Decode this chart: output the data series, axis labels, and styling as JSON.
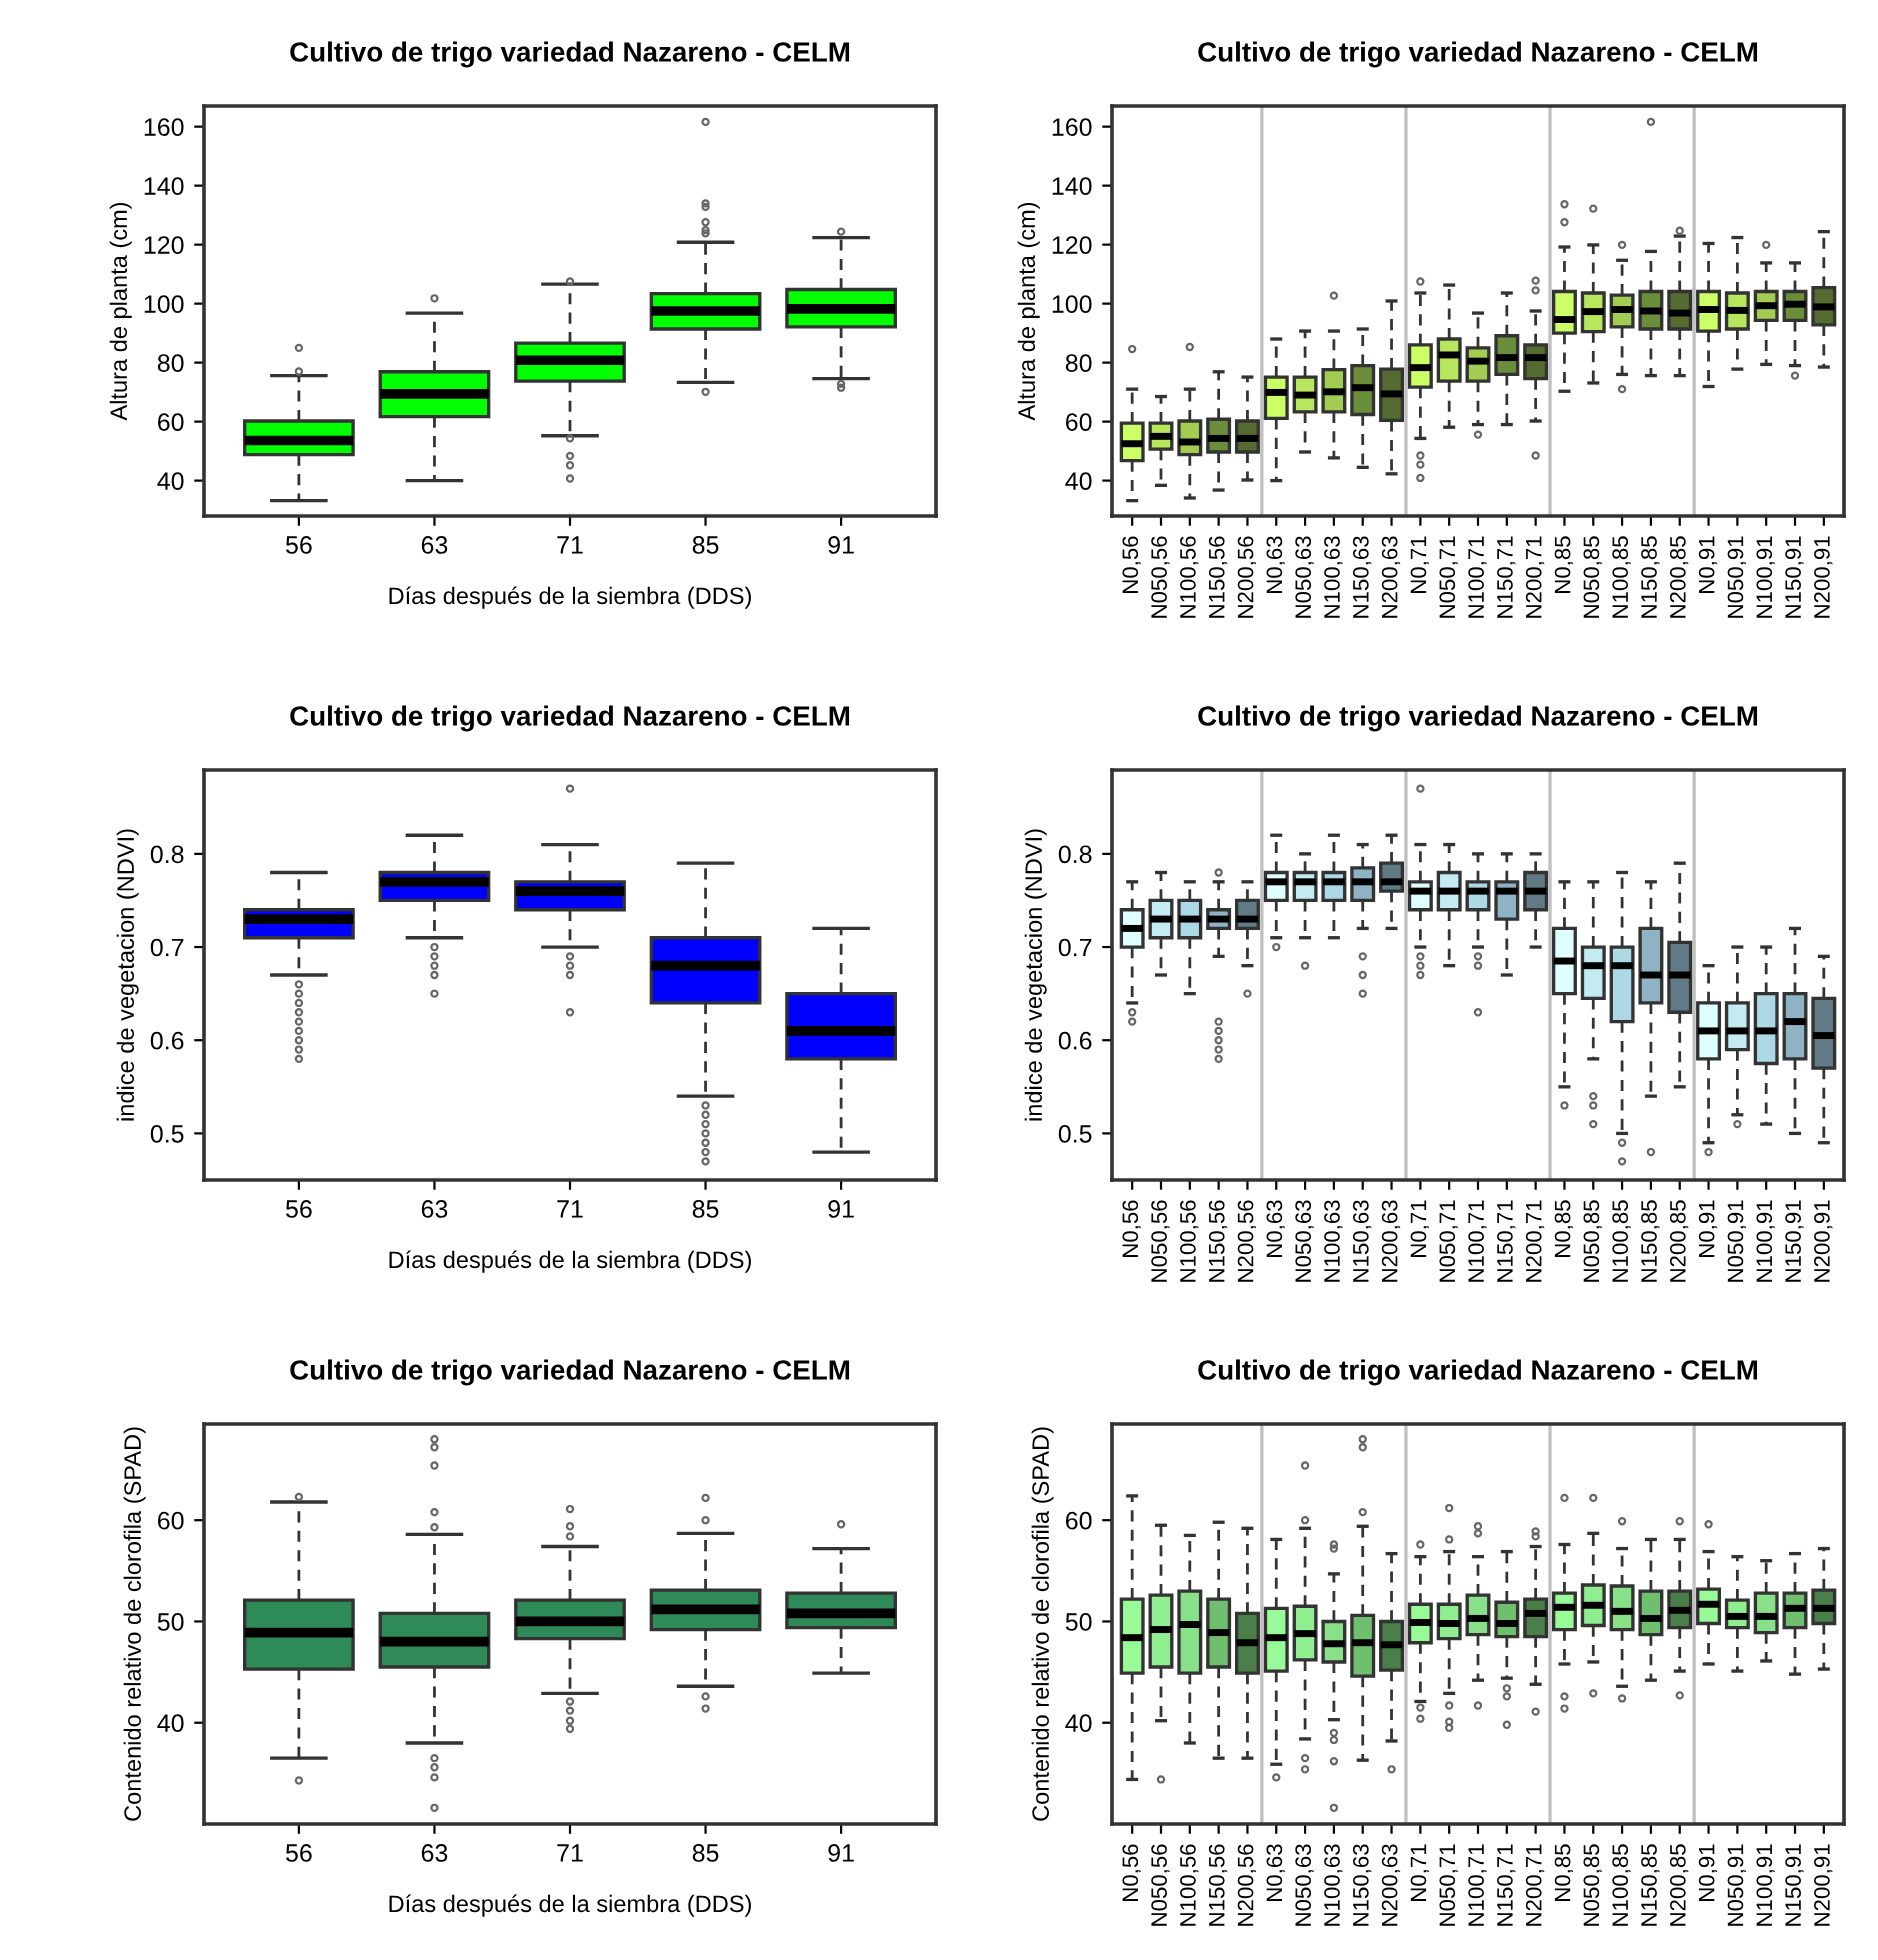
{
  "chart_data": [
    {
      "type": "box",
      "title": "Cultivo de trigo variedad Nazareno - CELM",
      "xlabel": "Días después de la siembra (DDS)",
      "ylabel": "Altura de planta (cm)",
      "categories": [
        "56",
        "63",
        "71",
        "85",
        "91"
      ],
      "colors": [
        "#00ff00",
        "#00ff00",
        "#00ff00",
        "#00ff00",
        "#00ff00"
      ],
      "ylim": [
        28,
        167
      ],
      "yticks": [
        40,
        60,
        80,
        100,
        120,
        140,
        160
      ],
      "grid": false,
      "boxes": [
        {
          "low": 33.2,
          "q1": 48.8,
          "median": 53.6,
          "q3": 60.2,
          "high": 75.6,
          "outliers": [
            77,
            85
          ]
        },
        {
          "low": 40,
          "q1": 61.7,
          "median": 69.4,
          "q3": 76.9,
          "high": 96.8,
          "outliers": [
            101.8
          ]
        },
        {
          "low": 55.2,
          "q1": 73.7,
          "median": 80.8,
          "q3": 86.6,
          "high": 106.6,
          "outliers": [
            107.5,
            54.3,
            48.4,
            45.2,
            40.7
          ]
        },
        {
          "low": 73.3,
          "q1": 91.4,
          "median": 97.5,
          "q3": 103.4,
          "high": 120.8,
          "outliers": [
            70.1,
            123.8,
            124.9,
            127.6,
            132.8,
            134,
            161.6
          ]
        },
        {
          "low": 74.6,
          "q1": 92.1,
          "median": 98.2,
          "q3": 104.8,
          "high": 122.4,
          "outliers": [
            124.4,
            72.8,
            71.5
          ]
        }
      ]
    },
    {
      "type": "box",
      "title": "Cultivo de trigo variedad Nazareno - CELM",
      "ylabel": "Altura de planta (cm)",
      "categories": [
        "N0,56",
        "N050,56",
        "N100,56",
        "N150,56",
        "N200,56",
        "N0,63",
        "N050,63",
        "N100,63",
        "N150,63",
        "N200,63",
        "N0,71",
        "N050,71",
        "N100,71",
        "N150,71",
        "N200,71",
        "N0,85",
        "N050,85",
        "N100,85",
        "N150,85",
        "N200,85",
        "N0,91",
        "N050,91",
        "N100,91",
        "N150,91",
        "N200,91"
      ],
      "colors": [
        "#ccff66",
        "#b8e65c",
        "#a3cc52",
        "#6b8e3a",
        "#556b2f",
        "#ccff66",
        "#b8e65c",
        "#a3cc52",
        "#6b8e3a",
        "#556b2f",
        "#ccff66",
        "#b8e65c",
        "#a3cc52",
        "#6b8e3a",
        "#556b2f",
        "#ccff66",
        "#b8e65c",
        "#a3cc52",
        "#6b8e3a",
        "#556b2f",
        "#ccff66",
        "#b8e65c",
        "#a3cc52",
        "#6b8e3a",
        "#556b2f"
      ],
      "ylim": [
        28,
        167
      ],
      "yticks": [
        40,
        60,
        80,
        100,
        120,
        140,
        160
      ],
      "grid": false,
      "boxes": [
        {
          "low": 33.2,
          "q1": 46.8,
          "median": 52.5,
          "q3": 59.5,
          "high": 71,
          "outliers": [
            84.6
          ]
        },
        {
          "low": 38.4,
          "q1": 50.7,
          "median": 55,
          "q3": 59.5,
          "high": 68.5
        },
        {
          "low": 34.1,
          "q1": 48.8,
          "median": 53.1,
          "q3": 60.2,
          "high": 71,
          "outliers": [
            85.3
          ]
        },
        {
          "low": 36.8,
          "q1": 49.7,
          "median": 54.3,
          "q3": 60.8,
          "high": 76.9
        },
        {
          "low": 40.2,
          "q1": 49.7,
          "median": 54.3,
          "q3": 60.2,
          "high": 75.1
        },
        {
          "low": 40,
          "q1": 61.1,
          "median": 69.9,
          "q3": 75.1,
          "high": 88
        },
        {
          "low": 49.7,
          "q1": 63.3,
          "median": 69,
          "q3": 75.1,
          "high": 90.7
        },
        {
          "low": 47.7,
          "q1": 63.3,
          "median": 70.1,
          "q3": 77.6,
          "high": 90.7,
          "outliers": [
            102.7
          ]
        },
        {
          "low": 44.5,
          "q1": 62.4,
          "median": 71.5,
          "q3": 79,
          "high": 91.4
        },
        {
          "low": 42.3,
          "q1": 60.4,
          "median": 69.4,
          "q3": 77.8,
          "high": 100.9
        },
        {
          "low": 54.3,
          "q1": 71.7,
          "median": 78.3,
          "q3": 86,
          "high": 103.6,
          "outliers": [
            48.5,
            45.4,
            40.9,
            107.5
          ]
        },
        {
          "low": 58.1,
          "q1": 73.7,
          "median": 82.6,
          "q3": 88,
          "high": 106.3
        },
        {
          "low": 59,
          "q1": 73.7,
          "median": 80.5,
          "q3": 85,
          "high": 96.8,
          "outliers": [
            55.6
          ]
        },
        {
          "low": 59,
          "q1": 76,
          "median": 81.7,
          "q3": 89.1,
          "high": 103.6
        },
        {
          "low": 60.2,
          "q1": 74.6,
          "median": 81.7,
          "q3": 86,
          "high": 97.5,
          "outliers": [
            48.5,
            104.5,
            107.8
          ]
        },
        {
          "low": 70.3,
          "q1": 90,
          "median": 94.6,
          "q3": 104.1,
          "high": 119.2,
          "outliers": [
            127.6,
            133.7
          ]
        },
        {
          "low": 73.1,
          "q1": 90.5,
          "median": 97.3,
          "q3": 103.6,
          "high": 119.9,
          "outliers": [
            132.2
          ]
        },
        {
          "low": 76,
          "q1": 92.1,
          "median": 98,
          "q3": 102.9,
          "high": 114.7,
          "outliers": [
            71,
            119.9
          ]
        },
        {
          "low": 75.6,
          "q1": 91.4,
          "median": 97.5,
          "q3": 104.1,
          "high": 117.7,
          "outliers": [
            161.6
          ]
        },
        {
          "low": 75.6,
          "q1": 91.4,
          "median": 96.8,
          "q3": 104.1,
          "high": 122.9,
          "outliers": [
            124.7
          ]
        },
        {
          "low": 71.9,
          "q1": 90.7,
          "median": 98,
          "q3": 104.1,
          "high": 120.4
        },
        {
          "low": 77.8,
          "q1": 91.4,
          "median": 97.7,
          "q3": 103.6,
          "high": 122.4
        },
        {
          "low": 79.4,
          "q1": 94.3,
          "median": 99.3,
          "q3": 104.1,
          "high": 113.8,
          "outliers": [
            119.9
          ]
        },
        {
          "low": 79,
          "q1": 94.3,
          "median": 99.8,
          "q3": 104.1,
          "high": 113.8,
          "outliers": [
            75.6
          ]
        },
        {
          "low": 78.5,
          "q1": 92.8,
          "median": 98.9,
          "q3": 105.4,
          "high": 124.4
        }
      ]
    },
    {
      "type": "box",
      "title": "Cultivo de trigo variedad Nazareno - CELM",
      "xlabel": "Días después de la siembra (DDS)",
      "ylabel": "indice de vegetacion (NDVI)",
      "categories": [
        "56",
        "63",
        "71",
        "85",
        "91"
      ],
      "colors": [
        "#0000ff",
        "#0000ff",
        "#0000ff",
        "#0000ff",
        "#0000ff"
      ],
      "ylim": [
        0.45,
        0.89
      ],
      "yticks": [
        0.5,
        0.6,
        0.7,
        0.8
      ],
      "grid": false,
      "boxes": [
        {
          "low": 0.67,
          "q1": 0.71,
          "median": 0.73,
          "q3": 0.74,
          "high": 0.78,
          "outliers": [
            0.58,
            0.59,
            0.6,
            0.61,
            0.62,
            0.63,
            0.64,
            0.65,
            0.66
          ]
        },
        {
          "low": 0.71,
          "q1": 0.75,
          "median": 0.77,
          "q3": 0.78,
          "high": 0.82,
          "outliers": [
            0.65,
            0.67,
            0.68,
            0.69,
            0.7
          ]
        },
        {
          "low": 0.7,
          "q1": 0.74,
          "median": 0.76,
          "q3": 0.77,
          "high": 0.81,
          "outliers": [
            0.63,
            0.67,
            0.68,
            0.69,
            0.87
          ]
        },
        {
          "low": 0.54,
          "q1": 0.64,
          "median": 0.68,
          "q3": 0.71,
          "high": 0.79,
          "outliers": [
            0.47,
            0.48,
            0.49,
            0.5,
            0.51,
            0.52,
            0.53
          ]
        },
        {
          "low": 0.48,
          "q1": 0.58,
          "median": 0.61,
          "q3": 0.65,
          "high": 0.72
        }
      ]
    },
    {
      "type": "box",
      "title": "Cultivo de trigo variedad Nazareno - CELM",
      "ylabel": "indice de vegetacion (NDVI)",
      "categories": [
        "N0,56",
        "N050,56",
        "N100,56",
        "N150,56",
        "N200,56",
        "N0,63",
        "N050,63",
        "N100,63",
        "N150,63",
        "N200,63",
        "N0,71",
        "N050,71",
        "N100,71",
        "N150,71",
        "N200,71",
        "N0,85",
        "N050,85",
        "N100,85",
        "N150,85",
        "N200,85",
        "N0,91",
        "N050,91",
        "N100,91",
        "N150,91",
        "N200,91"
      ],
      "colors": [
        "#e0ffff",
        "#c4eaf2",
        "#add8e6",
        "#8fb3c2",
        "#607b85",
        "#e0ffff",
        "#c4eaf2",
        "#add8e6",
        "#8fb3c2",
        "#607b85",
        "#e0ffff",
        "#c4eaf2",
        "#add8e6",
        "#8fb3c2",
        "#607b85",
        "#e0ffff",
        "#c4eaf2",
        "#add8e6",
        "#8fb3c2",
        "#607b85",
        "#e0ffff",
        "#c4eaf2",
        "#add8e6",
        "#8fb3c2",
        "#607b85"
      ],
      "ylim": [
        0.45,
        0.89
      ],
      "yticks": [
        0.5,
        0.6,
        0.7,
        0.8
      ],
      "grid": false,
      "boxes": [
        {
          "low": 0.64,
          "q1": 0.7,
          "median": 0.72,
          "q3": 0.74,
          "high": 0.77,
          "outliers": [
            0.62,
            0.63
          ]
        },
        {
          "low": 0.67,
          "q1": 0.71,
          "median": 0.73,
          "q3": 0.75,
          "high": 0.78
        },
        {
          "low": 0.65,
          "q1": 0.71,
          "median": 0.73,
          "q3": 0.75,
          "high": 0.77
        },
        {
          "low": 0.69,
          "q1": 0.72,
          "median": 0.73,
          "q3": 0.74,
          "high": 0.77,
          "outliers": [
            0.58,
            0.59,
            0.6,
            0.61,
            0.62,
            0.78
          ]
        },
        {
          "low": 0.68,
          "q1": 0.72,
          "median": 0.73,
          "q3": 0.75,
          "high": 0.77,
          "outliers": [
            0.65
          ]
        },
        {
          "low": 0.71,
          "q1": 0.75,
          "median": 0.77,
          "q3": 0.78,
          "high": 0.82,
          "outliers": [
            0.7
          ]
        },
        {
          "low": 0.71,
          "q1": 0.75,
          "median": 0.77,
          "q3": 0.78,
          "high": 0.8,
          "outliers": [
            0.68
          ]
        },
        {
          "low": 0.71,
          "q1": 0.75,
          "median": 0.77,
          "q3": 0.78,
          "high": 0.82
        },
        {
          "low": 0.72,
          "q1": 0.75,
          "median": 0.77,
          "q3": 0.785,
          "high": 0.81,
          "outliers": [
            0.65,
            0.67,
            0.69
          ]
        },
        {
          "low": 0.72,
          "q1": 0.76,
          "median": 0.77,
          "q3": 0.79,
          "high": 0.82
        },
        {
          "low": 0.7,
          "q1": 0.74,
          "median": 0.76,
          "q3": 0.77,
          "high": 0.81,
          "outliers": [
            0.67,
            0.68,
            0.69,
            0.87
          ]
        },
        {
          "low": 0.68,
          "q1": 0.74,
          "median": 0.76,
          "q3": 0.78,
          "high": 0.81
        },
        {
          "low": 0.7,
          "q1": 0.74,
          "median": 0.76,
          "q3": 0.77,
          "high": 0.8,
          "outliers": [
            0.63,
            0.68,
            0.69
          ]
        },
        {
          "low": 0.67,
          "q1": 0.73,
          "median": 0.76,
          "q3": 0.77,
          "high": 0.8
        },
        {
          "low": 0.7,
          "q1": 0.74,
          "median": 0.76,
          "q3": 0.78,
          "high": 0.8
        },
        {
          "low": 0.55,
          "q1": 0.65,
          "median": 0.685,
          "q3": 0.72,
          "high": 0.77,
          "outliers": [
            0.53
          ]
        },
        {
          "low": 0.58,
          "q1": 0.645,
          "median": 0.68,
          "q3": 0.7,
          "high": 0.77,
          "outliers": [
            0.51,
            0.53,
            0.54
          ]
        },
        {
          "low": 0.5,
          "q1": 0.62,
          "median": 0.68,
          "q3": 0.7,
          "high": 0.78,
          "outliers": [
            0.47,
            0.49
          ]
        },
        {
          "low": 0.54,
          "q1": 0.64,
          "median": 0.67,
          "q3": 0.72,
          "high": 0.77,
          "outliers": [
            0.48
          ]
        },
        {
          "low": 0.55,
          "q1": 0.63,
          "median": 0.67,
          "q3": 0.705,
          "high": 0.79
        },
        {
          "low": 0.49,
          "q1": 0.58,
          "median": 0.61,
          "q3": 0.64,
          "high": 0.68,
          "outliers": [
            0.48
          ]
        },
        {
          "low": 0.52,
          "q1": 0.59,
          "median": 0.61,
          "q3": 0.64,
          "high": 0.7,
          "outliers": [
            0.51
          ]
        },
        {
          "low": 0.51,
          "q1": 0.575,
          "median": 0.61,
          "q3": 0.65,
          "high": 0.7
        },
        {
          "low": 0.5,
          "q1": 0.58,
          "median": 0.62,
          "q3": 0.65,
          "high": 0.72
        },
        {
          "low": 0.49,
          "q1": 0.57,
          "median": 0.605,
          "q3": 0.645,
          "high": 0.69
        }
      ]
    },
    {
      "type": "box",
      "title": "Cultivo de trigo variedad Nazareno - CELM",
      "xlabel": "Días después de la siembra (DDS)",
      "ylabel": "Contenido relativo de clorofila (SPAD)",
      "categories": [
        "56",
        "63",
        "71",
        "85",
        "91"
      ],
      "colors": [
        "#2e8b57",
        "#2e8b57",
        "#2e8b57",
        "#2e8b57",
        "#2e8b57"
      ],
      "ylim": [
        30,
        69.5
      ],
      "yticks": [
        40,
        50,
        60
      ],
      "grid": false,
      "boxes": [
        {
          "low": 36.5,
          "q1": 45.3,
          "median": 48.9,
          "q3": 52.1,
          "high": 61.8,
          "outliers": [
            62.3,
            34.3
          ]
        },
        {
          "low": 38,
          "q1": 45.5,
          "median": 48,
          "q3": 50.8,
          "high": 58.6,
          "outliers": [
            59.3,
            60.8,
            65.4,
            67.2,
            68,
            36.5,
            35.6,
            34.6,
            31.6
          ]
        },
        {
          "low": 42.9,
          "q1": 48.3,
          "median": 50,
          "q3": 52.1,
          "high": 57.4,
          "outliers": [
            61.1,
            59.4,
            58.4,
            42.1,
            41.2,
            40.2,
            39.4
          ]
        },
        {
          "low": 43.6,
          "q1": 49.2,
          "median": 51.2,
          "q3": 53.1,
          "high": 58.7,
          "outliers": [
            60,
            62.2,
            42.6,
            41.4
          ]
        },
        {
          "low": 44.9,
          "q1": 49.4,
          "median": 50.8,
          "q3": 52.8,
          "high": 57.2,
          "outliers": [
            59.6
          ]
        }
      ]
    },
    {
      "type": "box",
      "title": "Cultivo de trigo variedad Nazareno - CELM",
      "ylabel": "Contenido relativo de clorofila (SPAD)",
      "categories": [
        "N0,56",
        "N050,56",
        "N100,56",
        "N150,56",
        "N200,56",
        "N0,63",
        "N050,63",
        "N100,63",
        "N150,63",
        "N200,63",
        "N0,71",
        "N050,71",
        "N100,71",
        "N150,71",
        "N200,71",
        "N0,85",
        "N050,85",
        "N100,85",
        "N150,85",
        "N200,85",
        "N0,91",
        "N050,91",
        "N100,91",
        "N150,91",
        "N200,91"
      ],
      "colors": [
        "#98fb98",
        "#90ee90",
        "#88e088",
        "#6fbf6f",
        "#4a7f4a",
        "#98fb98",
        "#90ee90",
        "#88e088",
        "#6fbf6f",
        "#4a7f4a",
        "#98fb98",
        "#90ee90",
        "#88e088",
        "#6fbf6f",
        "#4a7f4a",
        "#98fb98",
        "#90ee90",
        "#88e088",
        "#6fbf6f",
        "#4a7f4a",
        "#98fb98",
        "#90ee90",
        "#88e088",
        "#6fbf6f",
        "#4a7f4a"
      ],
      "ylim": [
        30,
        69.5
      ],
      "yticks": [
        40,
        50,
        60
      ],
      "grid": false,
      "boxes": [
        {
          "low": 34.4,
          "q1": 44.9,
          "median": 48.4,
          "q3": 52.2,
          "high": 62.4
        },
        {
          "low": 40.2,
          "q1": 45.5,
          "median": 49.2,
          "q3": 52.6,
          "high": 59.5,
          "outliers": [
            34.4
          ]
        },
        {
          "low": 38,
          "q1": 44.9,
          "median": 49.7,
          "q3": 53,
          "high": 58.5
        },
        {
          "low": 36.5,
          "q1": 45.5,
          "median": 48.9,
          "q3": 52.2,
          "high": 59.8
        },
        {
          "low": 36.5,
          "q1": 44.9,
          "median": 47.9,
          "q3": 50.8,
          "high": 59.2
        },
        {
          "low": 35.9,
          "q1": 45.1,
          "median": 48.4,
          "q3": 51.3,
          "high": 58.1,
          "outliers": [
            34.6
          ]
        },
        {
          "low": 38.4,
          "q1": 46.2,
          "median": 48.8,
          "q3": 51.5,
          "high": 59.2,
          "outliers": [
            36.5,
            35.4,
            60,
            65.4
          ]
        },
        {
          "low": 40.3,
          "q1": 46,
          "median": 47.8,
          "q3": 50,
          "high": 54.7,
          "outliers": [
            57.2,
            57.6,
            39,
            38.3,
            36.2,
            31.6
          ]
        },
        {
          "low": 36.3,
          "q1": 44.6,
          "median": 47.9,
          "q3": 50.6,
          "high": 59.4,
          "outliers": [
            60.8,
            67.2,
            68
          ]
        },
        {
          "low": 38.2,
          "q1": 45.2,
          "median": 47.7,
          "q3": 50,
          "high": 56.7,
          "outliers": [
            35.4
          ]
        },
        {
          "low": 42.1,
          "q1": 47.9,
          "median": 49.9,
          "q3": 51.7,
          "high": 56.4,
          "outliers": [
            57.6,
            41.5,
            40.4
          ]
        },
        {
          "low": 42.9,
          "q1": 48.3,
          "median": 49.8,
          "q3": 51.7,
          "high": 56.9,
          "outliers": [
            58.1,
            61.2,
            41.7,
            40.1,
            39.5
          ]
        },
        {
          "low": 44.2,
          "q1": 48.7,
          "median": 50.3,
          "q3": 52.6,
          "high": 56.4,
          "outliers": [
            59.4,
            58.7,
            41.7
          ]
        },
        {
          "low": 44.4,
          "q1": 48.5,
          "median": 49.8,
          "q3": 51.9,
          "high": 56.9,
          "outliers": [
            43.4,
            42.6,
            39.8
          ]
        },
        {
          "low": 43.8,
          "q1": 48.5,
          "median": 50.8,
          "q3": 52.2,
          "high": 57.4,
          "outliers": [
            58.9,
            58.4,
            41.1
          ]
        },
        {
          "low": 45.8,
          "q1": 49.2,
          "median": 51.4,
          "q3": 52.8,
          "high": 57.6,
          "outliers": [
            42.6,
            41.4,
            62.2
          ]
        },
        {
          "low": 46,
          "q1": 49.6,
          "median": 51.6,
          "q3": 53.6,
          "high": 58.7,
          "outliers": [
            42.9,
            62.2
          ]
        },
        {
          "low": 43.6,
          "q1": 49.2,
          "median": 51,
          "q3": 53.5,
          "high": 57.2,
          "outliers": [
            42.4,
            59.9
          ]
        },
        {
          "low": 44.2,
          "q1": 48.7,
          "median": 50.3,
          "q3": 53,
          "high": 58.1
        },
        {
          "low": 45.1,
          "q1": 49.4,
          "median": 51.1,
          "q3": 53,
          "high": 58.1,
          "outliers": [
            42.7,
            59.9
          ]
        },
        {
          "low": 45.8,
          "q1": 49.8,
          "median": 51.7,
          "q3": 53.2,
          "high": 56.9,
          "outliers": [
            59.6
          ]
        },
        {
          "low": 45.1,
          "q1": 49.4,
          "median": 50.5,
          "q3": 52.1,
          "high": 56.4
        },
        {
          "low": 46.1,
          "q1": 48.9,
          "median": 50.5,
          "q3": 52.8,
          "high": 56
        },
        {
          "low": 44.8,
          "q1": 49.4,
          "median": 51.3,
          "q3": 52.8,
          "high": 56.7
        },
        {
          "low": 45.3,
          "q1": 49.8,
          "median": 51.3,
          "q3": 53.1,
          "high": 57.2
        }
      ]
    }
  ]
}
